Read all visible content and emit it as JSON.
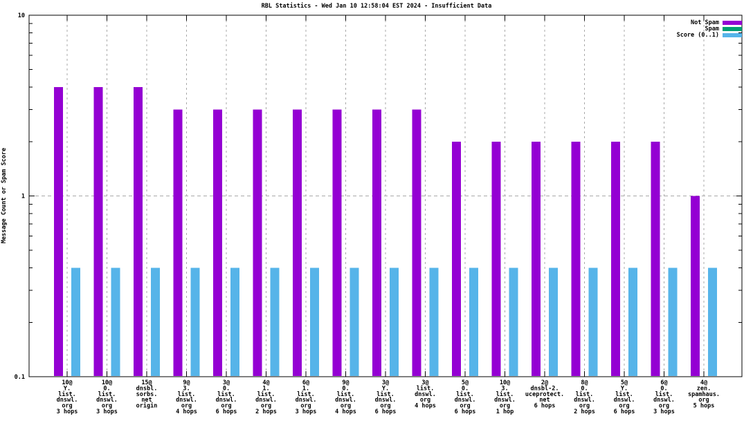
{
  "chart_data": {
    "type": "bar",
    "title": "RBL Statistics - Wed Jan 10 12:58:04 EST 2024 - Insufficient Data",
    "ylabel": "Message Count or Spam Score",
    "xlabel": "",
    "y_scale": "log",
    "ylim": [
      0.1,
      10
    ],
    "grid": true,
    "legend_position": "top-right-inside",
    "yticks": [
      {
        "value": 0.1,
        "label": "0.1"
      },
      {
        "value": 1,
        "label": "1"
      },
      {
        "value": 10,
        "label": "10"
      }
    ],
    "categories": [
      [
        "10@",
        "Y.",
        "list.",
        "dnswl.",
        "org",
        "3 hops"
      ],
      [
        "10@",
        "0.",
        "list.",
        "dnswl.",
        "org",
        "3 hops"
      ],
      [
        "15@",
        "dnsbl.",
        "sorbs.",
        "net",
        "origin"
      ],
      [
        "9@",
        "3.",
        "list.",
        "dnswl.",
        "org",
        "4 hops"
      ],
      [
        "3@",
        "0.",
        "list.",
        "dnswl.",
        "org",
        "6 hops"
      ],
      [
        "4@",
        "1.",
        "list.",
        "dnswl.",
        "org",
        "2 hops"
      ],
      [
        "6@",
        "1.",
        "list.",
        "dnswl.",
        "org",
        "3 hops"
      ],
      [
        "9@",
        "0.",
        "list.",
        "dnswl.",
        "org",
        "4 hops"
      ],
      [
        "3@",
        "Y.",
        "list.",
        "dnswl.",
        "org",
        "6 hops"
      ],
      [
        "3@",
        "list.",
        "dnswl.",
        "org",
        "4 hops"
      ],
      [
        "5@",
        "0.",
        "list.",
        "dnswl.",
        "org",
        "6 hops"
      ],
      [
        "10@",
        "3.",
        "list.",
        "dnswl.",
        "org",
        "1 hop"
      ],
      [
        "2@",
        "dnsbl-2.",
        "uceprotect.",
        "net",
        "6 hops"
      ],
      [
        "8@",
        "0.",
        "list.",
        "dnswl.",
        "org",
        "2 hops"
      ],
      [
        "5@",
        "Y.",
        "list.",
        "dnswl.",
        "org",
        "6 hops"
      ],
      [
        "6@",
        "0.",
        "list.",
        "dnswl.",
        "org",
        "3 hops"
      ],
      [
        "4@",
        "zen.",
        "spamhaus.",
        "org",
        "5 hops"
      ]
    ],
    "series": [
      {
        "name": "Not Spam",
        "color": "#9400d3",
        "values": [
          4,
          4,
          4,
          3,
          3,
          3,
          3,
          3,
          3,
          3,
          2,
          2,
          2,
          2,
          2,
          2,
          1
        ]
      },
      {
        "name": "Spam",
        "color": "#009e73",
        "values": [
          0,
          0,
          0,
          0,
          0,
          0,
          0,
          0,
          0,
          0,
          0,
          0,
          0,
          0,
          0,
          0,
          0
        ]
      },
      {
        "name": "Score (0..1)",
        "color": "#56b4e9",
        "values": [
          0.4,
          0.4,
          0.4,
          0.4,
          0.4,
          0.4,
          0.4,
          0.4,
          0.4,
          0.4,
          0.4,
          0.4,
          0.4,
          0.4,
          0.4,
          0.4,
          0.4
        ]
      }
    ],
    "colors": {
      "grid": "#a8a8a8",
      "axis": "#000000",
      "background": "#ffffff"
    }
  }
}
